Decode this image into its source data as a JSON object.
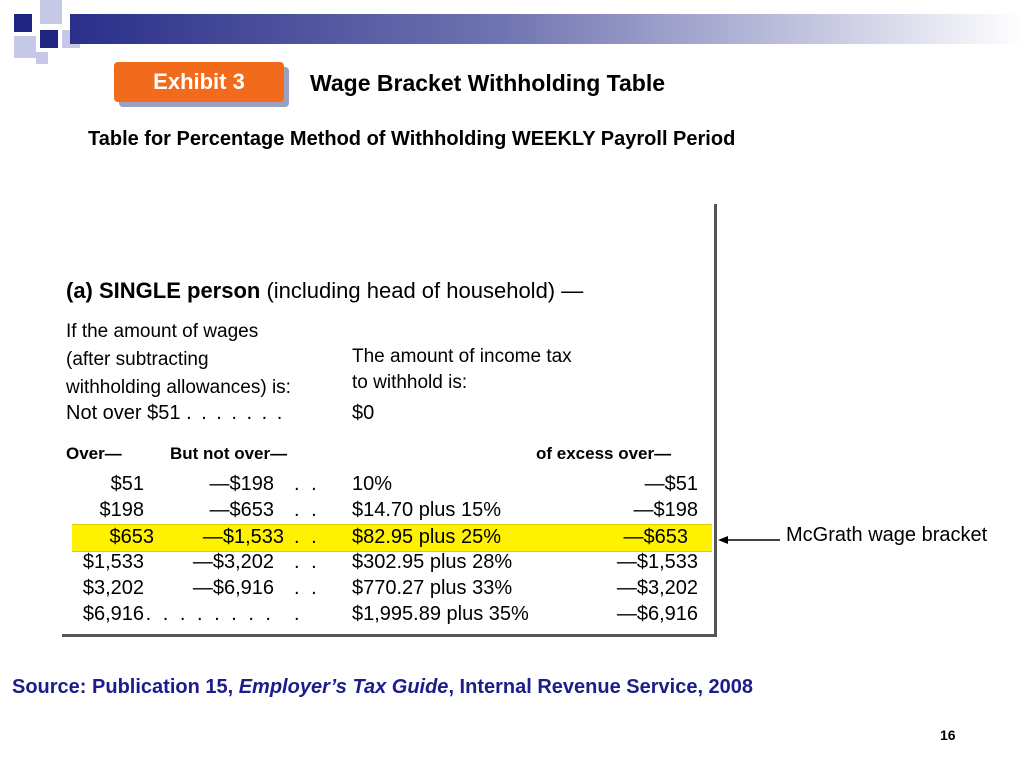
{
  "slide": {
    "exhibit_label": "Exhibit 3",
    "title": "Wage Bracket Withholding Table",
    "subtitle": "Table for Percentage Method of Withholding WEEKLY Payroll Period",
    "page_number": "16"
  },
  "table": {
    "heading_bold": "(a) SINGLE person",
    "heading_rest": " (including head of household) —",
    "wage_header": [
      "If the amount of wages",
      "(after subtracting",
      "withholding allowances) is:"
    ],
    "tax_header": [
      "The amount of income tax",
      "to withhold is:"
    ],
    "not_over": {
      "label": "Not over $51",
      "dots": ". . . . . . .",
      "tax": "$0"
    },
    "columns": {
      "over": "Over—",
      "but_not_over": "But not over—",
      "of_excess": "of excess over—"
    },
    "rows": [
      {
        "over": "$51",
        "but_not_over": "—$198",
        "dots": ". .",
        "tax": "10%",
        "excess": "—$51"
      },
      {
        "over": "$198",
        "but_not_over": "—$653",
        "dots": ". .",
        "tax": "$14.70 plus 15%",
        "excess": "—$198"
      },
      {
        "over": "$653",
        "but_not_over": "—$1,533",
        "dots": ". .",
        "tax": "$82.95 plus 25%",
        "excess": "—$653"
      },
      {
        "over": "$1,533",
        "but_not_over": "—$3,202",
        "dots": ". .",
        "tax": "$302.95 plus 28%",
        "excess": "—$1,533"
      },
      {
        "over": "$3,202",
        "but_not_over": "—$6,916",
        "dots": ". .",
        "tax": "$770.27 plus 33%",
        "excess": "—$3,202"
      },
      {
        "over": "$6,916",
        "but_not_over": ". . . . . . . .",
        "dots": ".",
        "tax": "$1,995.89 plus 35%",
        "excess": "—$6,916"
      }
    ],
    "highlight_color": "#fff200"
  },
  "annotation": {
    "label": "McGrath wage bracket"
  },
  "source": {
    "prefix": "Source:  Publication 15, ",
    "italic": "Employer’s Tax Guide",
    "suffix": ", Internal Revenue Service, 2008"
  },
  "colors": {
    "accent_orange": "#f26a1b",
    "navy": "#2a2f8a",
    "source_text": "#1c1c8a"
  }
}
